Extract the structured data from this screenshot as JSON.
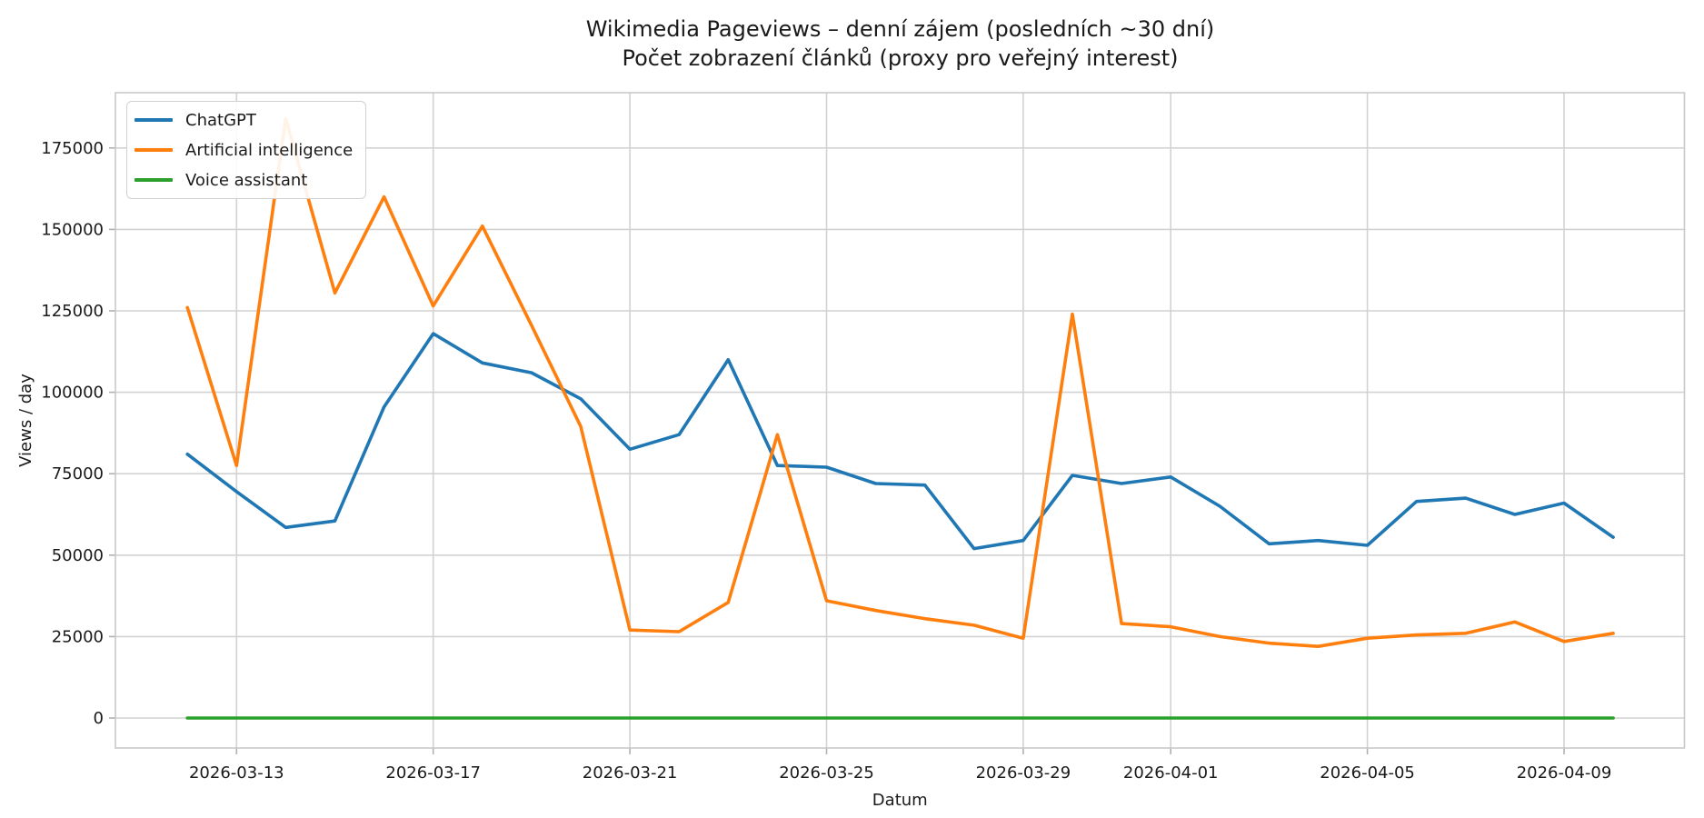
{
  "title": {
    "line1": "Wikimedia Pageviews – denní zájem (posledních ~30 dní)",
    "line2": "Počet zobrazení článků (proxy pro veřejný interest)"
  },
  "chart_data": {
    "type": "line",
    "title": "Wikimedia Pageviews – denní zájem (posledních ~30 dní)",
    "subtitle": "Počet zobrazení článků (proxy pro veřejný interest)",
    "xlabel": "Datum",
    "ylabel": "Views / day",
    "grid": true,
    "legend_position": "upper left",
    "x": [
      "2026-03-12",
      "2026-03-13",
      "2026-03-14",
      "2026-03-15",
      "2026-03-16",
      "2026-03-17",
      "2026-03-18",
      "2026-03-19",
      "2026-03-20",
      "2026-03-21",
      "2026-03-22",
      "2026-03-23",
      "2026-03-24",
      "2026-03-25",
      "2026-03-26",
      "2026-03-27",
      "2026-03-28",
      "2026-03-29",
      "2026-03-30",
      "2026-03-31",
      "2026-04-01",
      "2026-04-02",
      "2026-04-03",
      "2026-04-04",
      "2026-04-05",
      "2026-04-06",
      "2026-04-07",
      "2026-04-08",
      "2026-04-09",
      "2026-04-10"
    ],
    "x_tick_labels": [
      "2026-03-13",
      "2026-03-17",
      "2026-03-21",
      "2026-03-25",
      "2026-03-29",
      "2026-04-01",
      "2026-04-05",
      "2026-04-09"
    ],
    "y_ticks": [
      0,
      25000,
      50000,
      75000,
      100000,
      125000,
      150000,
      175000
    ],
    "y_tick_labels": [
      "0",
      "25000",
      "50000",
      "75000",
      "100000",
      "125000",
      "150000",
      "175000"
    ],
    "ylim": [
      -9200,
      192000
    ],
    "series": [
      {
        "name": "ChatGPT",
        "color": "#1f77b4",
        "values": [
          81000,
          69500,
          58500,
          60500,
          95500,
          118000,
          109000,
          106000,
          98000,
          82500,
          87000,
          110000,
          77500,
          77000,
          72000,
          71500,
          52000,
          54500,
          74500,
          72000,
          74000,
          65000,
          53500,
          54500,
          53000,
          66500,
          67500,
          62500,
          66000,
          55500
        ]
      },
      {
        "name": "Artificial intelligence",
        "color": "#ff7f0e",
        "values": [
          126000,
          77500,
          184000,
          130500,
          160000,
          126500,
          151000,
          120500,
          89500,
          27000,
          26500,
          35500,
          87000,
          36000,
          33000,
          30500,
          28500,
          24500,
          124000,
          29000,
          28000,
          25000,
          23000,
          22000,
          24500,
          25500,
          26000,
          29500,
          23500,
          26000
        ]
      },
      {
        "name": "Voice assistant",
        "color": "#2ca02c",
        "values": [
          0,
          0,
          0,
          0,
          0,
          0,
          0,
          0,
          0,
          0,
          0,
          0,
          0,
          0,
          0,
          0,
          0,
          0,
          0,
          0,
          0,
          0,
          0,
          0,
          0,
          0,
          0,
          0,
          0,
          0
        ]
      }
    ]
  }
}
